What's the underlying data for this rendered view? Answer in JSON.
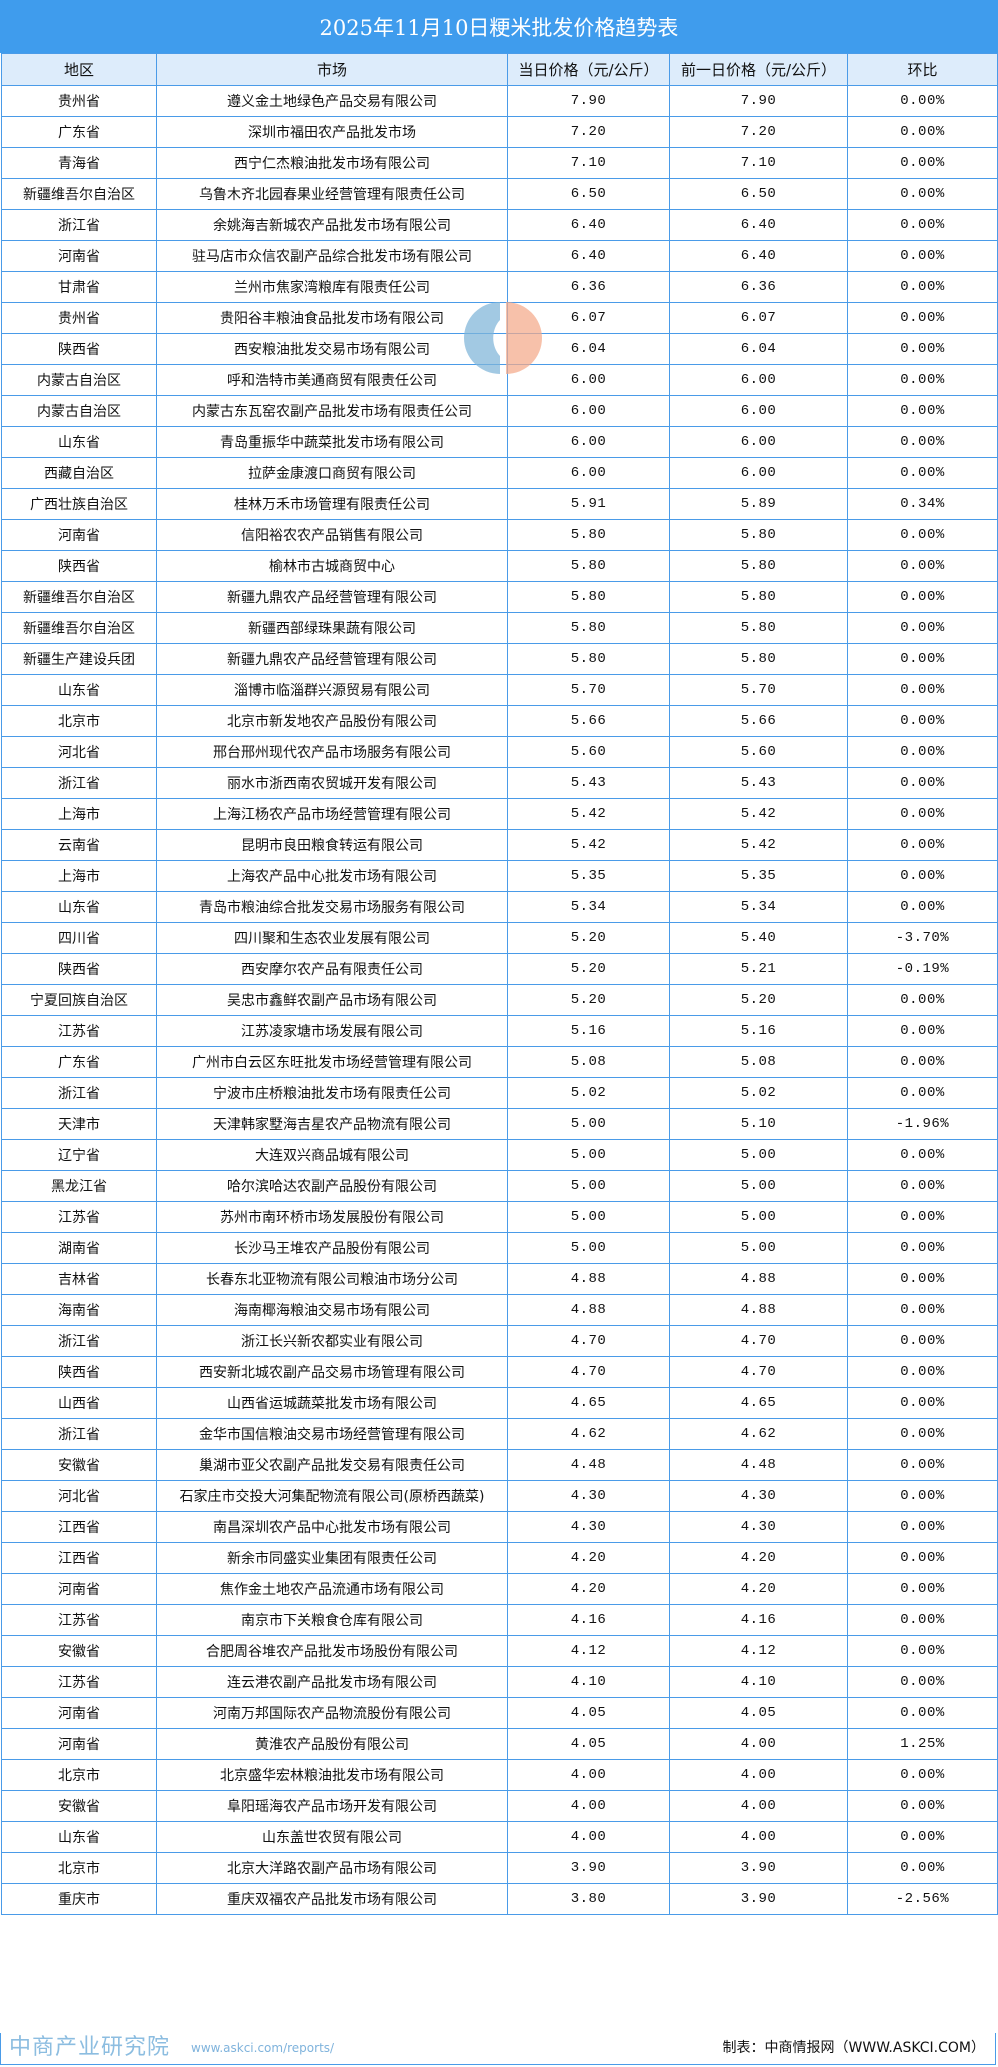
{
  "title": "2025年11月10日粳米批发价格趋势表",
  "colors": {
    "title_bg": "#3f9ced",
    "header_bg": "#ddecfb",
    "border": "#4a9be8"
  },
  "headers": [
    "地区",
    "市场",
    "当日价格（元/公斤）",
    "前一日价格（元/公斤）",
    "环比"
  ],
  "rows": [
    [
      "贵州省",
      "遵义金土地绿色产品交易有限公司",
      "7.90",
      "7.90",
      "0.00%"
    ],
    [
      "广东省",
      "深圳市福田农产品批发市场",
      "7.20",
      "7.20",
      "0.00%"
    ],
    [
      "青海省",
      "西宁仁杰粮油批发市场有限公司",
      "7.10",
      "7.10",
      "0.00%"
    ],
    [
      "新疆维吾尔自治区",
      "乌鲁木齐北园春果业经营管理有限责任公司",
      "6.50",
      "6.50",
      "0.00%"
    ],
    [
      "浙江省",
      "余姚海吉新城农产品批发市场有限公司",
      "6.40",
      "6.40",
      "0.00%"
    ],
    [
      "河南省",
      "驻马店市众信农副产品综合批发市场有限公司",
      "6.40",
      "6.40",
      "0.00%"
    ],
    [
      "甘肃省",
      "兰州市焦家湾粮库有限责任公司",
      "6.36",
      "6.36",
      "0.00%"
    ],
    [
      "贵州省",
      "贵阳谷丰粮油食品批发市场有限公司",
      "6.07",
      "6.07",
      "0.00%"
    ],
    [
      "陕西省",
      "西安粮油批发交易市场有限公司",
      "6.04",
      "6.04",
      "0.00%"
    ],
    [
      "内蒙古自治区",
      "呼和浩特市美通商贸有限责任公司",
      "6.00",
      "6.00",
      "0.00%"
    ],
    [
      "内蒙古自治区",
      "内蒙古东瓦窑农副产品批发市场有限责任公司",
      "6.00",
      "6.00",
      "0.00%"
    ],
    [
      "山东省",
      "青岛重振华中蔬菜批发市场有限公司",
      "6.00",
      "6.00",
      "0.00%"
    ],
    [
      "西藏自治区",
      "拉萨金康渡口商贸有限公司",
      "6.00",
      "6.00",
      "0.00%"
    ],
    [
      "广西壮族自治区",
      "桂林万禾市场管理有限责任公司",
      "5.91",
      "5.89",
      "0.34%"
    ],
    [
      "河南省",
      "信阳裕农农产品销售有限公司",
      "5.80",
      "5.80",
      "0.00%"
    ],
    [
      "陕西省",
      "榆林市古城商贸中心",
      "5.80",
      "5.80",
      "0.00%"
    ],
    [
      "新疆维吾尔自治区",
      "新疆九鼎农产品经营管理有限公司",
      "5.80",
      "5.80",
      "0.00%"
    ],
    [
      "新疆维吾尔自治区",
      "新疆西部绿珠果蔬有限公司",
      "5.80",
      "5.80",
      "0.00%"
    ],
    [
      "新疆生产建设兵团",
      "新疆九鼎农产品经营管理有限公司",
      "5.80",
      "5.80",
      "0.00%"
    ],
    [
      "山东省",
      "淄博市临淄群兴源贸易有限公司",
      "5.70",
      "5.70",
      "0.00%"
    ],
    [
      "北京市",
      "北京市新发地农产品股份有限公司",
      "5.66",
      "5.66",
      "0.00%"
    ],
    [
      "河北省",
      "邢台邢州现代农产品市场服务有限公司",
      "5.60",
      "5.60",
      "0.00%"
    ],
    [
      "浙江省",
      "丽水市浙西南农贸城开发有限公司",
      "5.43",
      "5.43",
      "0.00%"
    ],
    [
      "上海市",
      "上海江杨农产品市场经营管理有限公司",
      "5.42",
      "5.42",
      "0.00%"
    ],
    [
      "云南省",
      "昆明市良田粮食转运有限公司",
      "5.42",
      "5.42",
      "0.00%"
    ],
    [
      "上海市",
      "上海农产品中心批发市场有限公司",
      "5.35",
      "5.35",
      "0.00%"
    ],
    [
      "山东省",
      "青岛市粮油综合批发交易市场服务有限公司",
      "5.34",
      "5.34",
      "0.00%"
    ],
    [
      "四川省",
      "四川聚和生态农业发展有限公司",
      "5.20",
      "5.40",
      "-3.70%"
    ],
    [
      "陕西省",
      "西安摩尔农产品有限责任公司",
      "5.20",
      "5.21",
      "-0.19%"
    ],
    [
      "宁夏回族自治区",
      "吴忠市鑫鲜农副产品市场有限公司",
      "5.20",
      "5.20",
      "0.00%"
    ],
    [
      "江苏省",
      "江苏凌家塘市场发展有限公司",
      "5.16",
      "5.16",
      "0.00%"
    ],
    [
      "广东省",
      "广州市白云区东旺批发市场经营管理有限公司",
      "5.08",
      "5.08",
      "0.00%"
    ],
    [
      "浙江省",
      "宁波市庄桥粮油批发市场有限责任公司",
      "5.02",
      "5.02",
      "0.00%"
    ],
    [
      "天津市",
      "天津韩家墅海吉星农产品物流有限公司",
      "5.00",
      "5.10",
      "-1.96%"
    ],
    [
      "辽宁省",
      "大连双兴商品城有限公司",
      "5.00",
      "5.00",
      "0.00%"
    ],
    [
      "黑龙江省",
      "哈尔滨哈达农副产品股份有限公司",
      "5.00",
      "5.00",
      "0.00%"
    ],
    [
      "江苏省",
      "苏州市南环桥市场发展股份有限公司",
      "5.00",
      "5.00",
      "0.00%"
    ],
    [
      "湖南省",
      "长沙马王堆农产品股份有限公司",
      "5.00",
      "5.00",
      "0.00%"
    ],
    [
      "吉林省",
      "长春东北亚物流有限公司粮油市场分公司",
      "4.88",
      "4.88",
      "0.00%"
    ],
    [
      "海南省",
      "海南椰海粮油交易市场有限公司",
      "4.88",
      "4.88",
      "0.00%"
    ],
    [
      "浙江省",
      "浙江长兴新农都实业有限公司",
      "4.70",
      "4.70",
      "0.00%"
    ],
    [
      "陕西省",
      "西安新北城农副产品交易市场管理有限公司",
      "4.70",
      "4.70",
      "0.00%"
    ],
    [
      "山西省",
      "山西省运城蔬菜批发市场有限公司",
      "4.65",
      "4.65",
      "0.00%"
    ],
    [
      "浙江省",
      "金华市国信粮油交易市场经营管理有限公司",
      "4.62",
      "4.62",
      "0.00%"
    ],
    [
      "安徽省",
      "巢湖市亚父农副产品批发交易有限责任公司",
      "4.48",
      "4.48",
      "0.00%"
    ],
    [
      "河北省",
      "石家庄市交投大河集配物流有限公司(原桥西蔬菜)",
      "4.30",
      "4.30",
      "0.00%"
    ],
    [
      "江西省",
      "南昌深圳农产品中心批发市场有限公司",
      "4.30",
      "4.30",
      "0.00%"
    ],
    [
      "江西省",
      "新余市同盛实业集团有限责任公司",
      "4.20",
      "4.20",
      "0.00%"
    ],
    [
      "河南省",
      "焦作金土地农产品流通市场有限公司",
      "4.20",
      "4.20",
      "0.00%"
    ],
    [
      "江苏省",
      "南京市下关粮食仓库有限公司",
      "4.16",
      "4.16",
      "0.00%"
    ],
    [
      "安徽省",
      "合肥周谷堆农产品批发市场股份有限公司",
      "4.12",
      "4.12",
      "0.00%"
    ],
    [
      "江苏省",
      "连云港农副产品批发市场有限公司",
      "4.10",
      "4.10",
      "0.00%"
    ],
    [
      "河南省",
      "河南万邦国际农产品物流股份有限公司",
      "4.05",
      "4.05",
      "0.00%"
    ],
    [
      "河南省",
      "黄淮农产品股份有限公司",
      "4.05",
      "4.00",
      "1.25%"
    ],
    [
      "北京市",
      "北京盛华宏林粮油批发市场有限公司",
      "4.00",
      "4.00",
      "0.00%"
    ],
    [
      "安徽省",
      "阜阳瑶海农产品市场开发有限公司",
      "4.00",
      "4.00",
      "0.00%"
    ],
    [
      "山东省",
      "山东盖世农贸有限公司",
      "4.00",
      "4.00",
      "0.00%"
    ],
    [
      "北京市",
      "北京大洋路农副产品市场有限公司",
      "3.90",
      "3.90",
      "0.00%"
    ],
    [
      "重庆市",
      "重庆双福农产品批发市场有限公司",
      "3.80",
      "3.90",
      "-2.56%"
    ]
  ],
  "watermark": {
    "name": "中商产业研究院",
    "url": "www.askci.com/reports/"
  },
  "footer": "制表：中商情报网（WWW.ASKCI.COM）"
}
